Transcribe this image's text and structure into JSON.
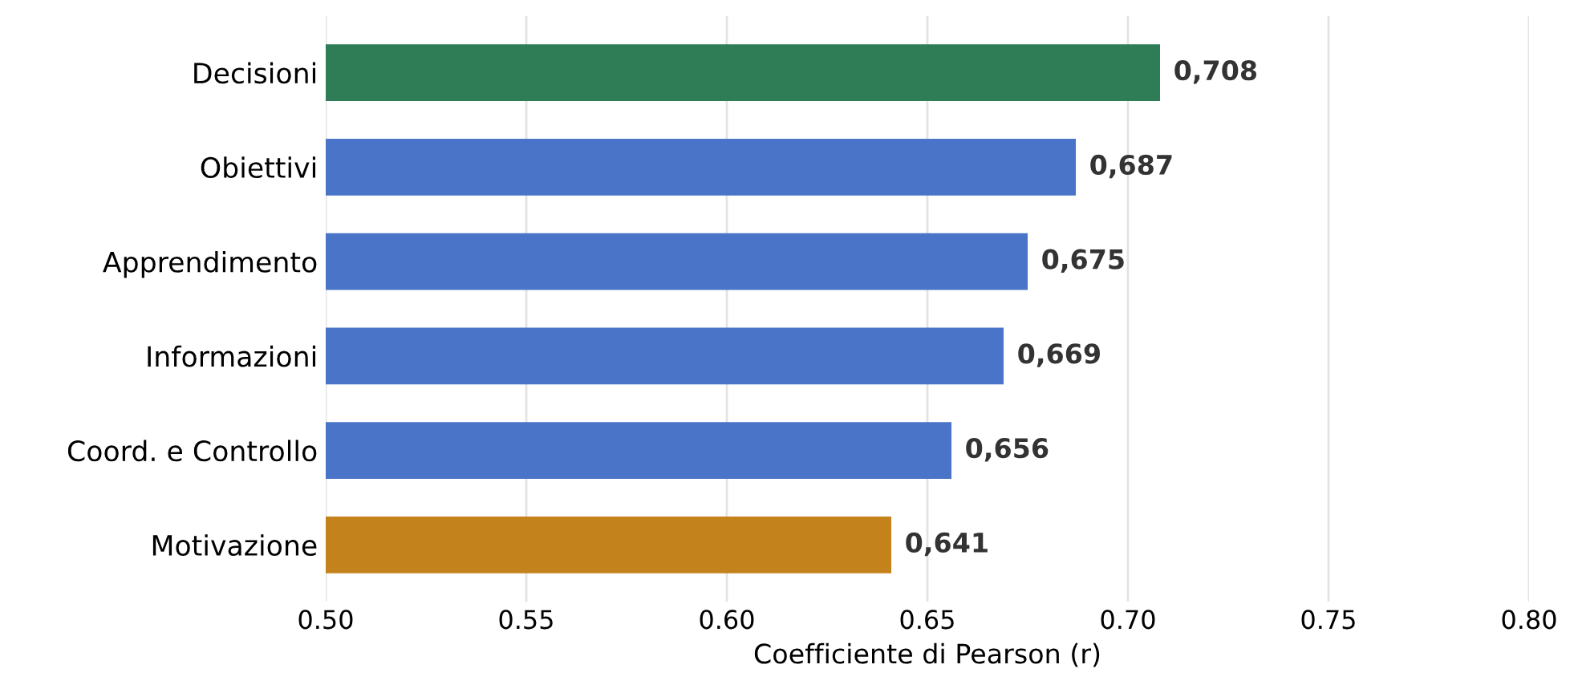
{
  "chart_data": {
    "type": "bar",
    "orientation": "horizontal",
    "xlabel": "Coefficiente di Pearson (r)",
    "categories": [
      "Decisioni",
      "Obiettivi",
      "Apprendimento",
      "Informazioni",
      "Coord. e Controllo",
      "Motivazione"
    ],
    "values": [
      0.708,
      0.687,
      0.675,
      0.669,
      0.656,
      0.641
    ],
    "value_labels": [
      "0,708",
      "0,687",
      "0,675",
      "0,669",
      "0,656",
      "0,641"
    ],
    "colors": [
      "#2e7d57",
      "#4a74c8",
      "#4a74c8",
      "#4a74c8",
      "#4a74c8",
      "#c4821c"
    ],
    "xlim": [
      0.5,
      0.8
    ],
    "xticks": [
      {
        "value": 0.5,
        "label": "0.50"
      },
      {
        "value": 0.55,
        "label": "0.55"
      },
      {
        "value": 0.6,
        "label": "0.60"
      },
      {
        "value": 0.65,
        "label": "0.65"
      },
      {
        "value": 0.7,
        "label": "0.70"
      },
      {
        "value": 0.75,
        "label": "0.75"
      },
      {
        "value": 0.8,
        "label": "0.80"
      }
    ],
    "grid": "x"
  }
}
